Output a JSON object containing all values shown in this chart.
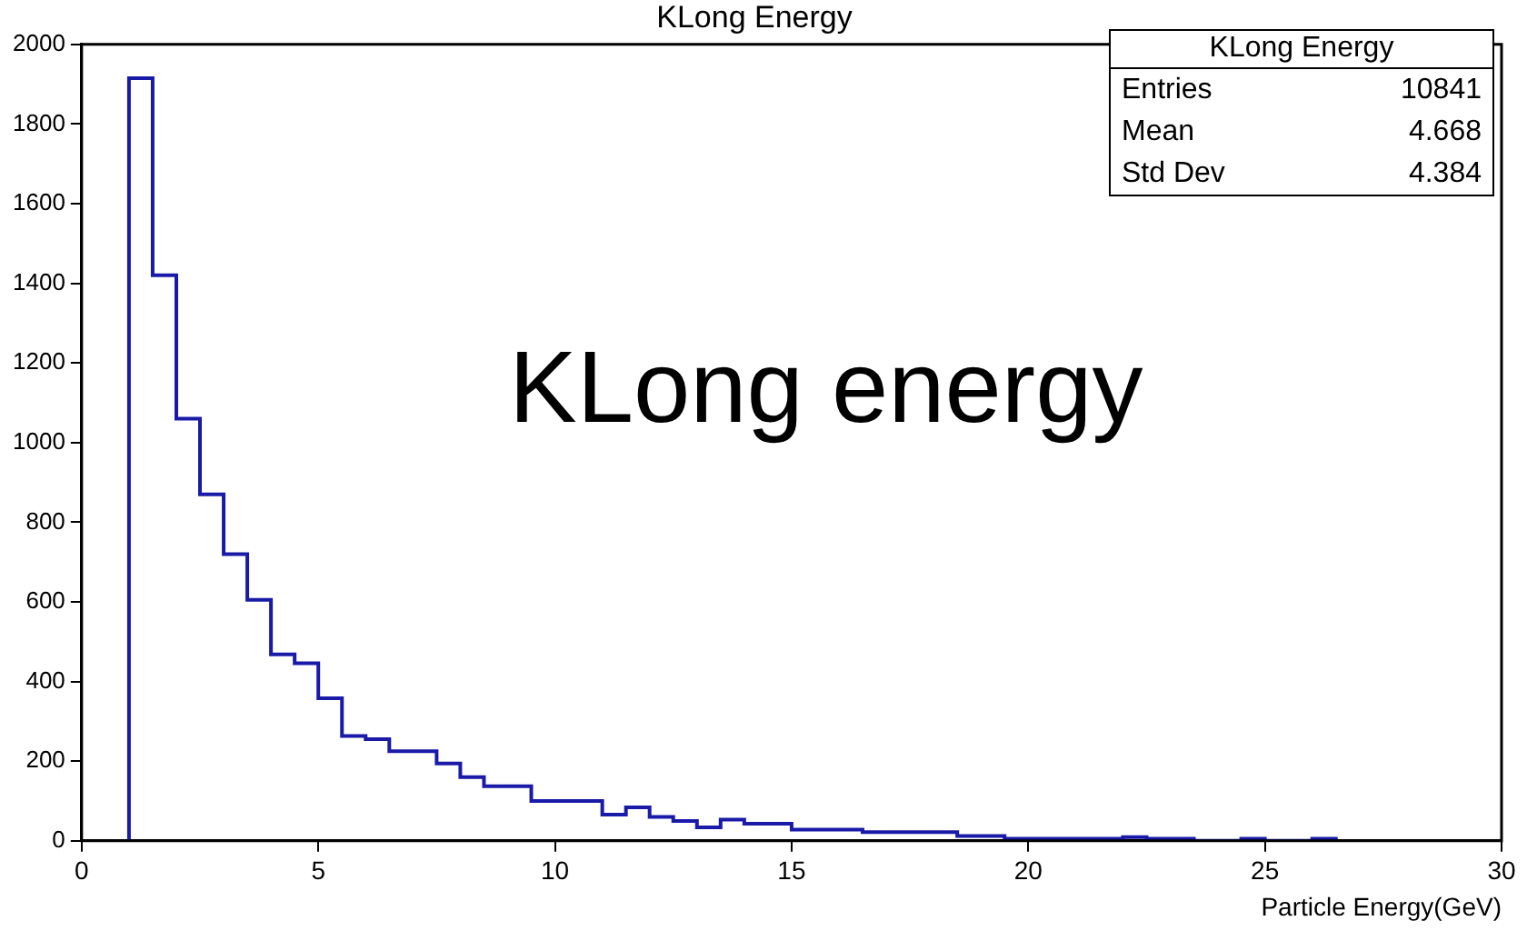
{
  "chart_data": {
    "type": "histogram",
    "title": "KLong Energy",
    "xlabel": "Particle Energy(GeV)",
    "bins": [
      1,
      1.5,
      2,
      2.5,
      3,
      3.5,
      4,
      4.5,
      5,
      5.5,
      6,
      6.5,
      7,
      7.5,
      8,
      8.5,
      9,
      9.5,
      10,
      10.5,
      11,
      11.5,
      12,
      12.5,
      13,
      13.5,
      14,
      14.5,
      15,
      15.5,
      16,
      16.5,
      17,
      17.5,
      18,
      18.5,
      19,
      19.5,
      20,
      20.5,
      21,
      21.5,
      22,
      22.5,
      23,
      23.5,
      24,
      24.5,
      25,
      25.5,
      26,
      26.5
    ],
    "values": [
      1915,
      1420,
      1060,
      870,
      720,
      605,
      468,
      446,
      358,
      263,
      255,
      225,
      225,
      194,
      160,
      137,
      137,
      100,
      100,
      100,
      66,
      84,
      60,
      50,
      34,
      53,
      43,
      43,
      28,
      28,
      28,
      22,
      22,
      22,
      22,
      12,
      12,
      5,
      5,
      5,
      5,
      5,
      9,
      5,
      5,
      0,
      0,
      5,
      0,
      0,
      5
    ],
    "color": "#1a1aa8",
    "xlim": [
      0,
      30
    ],
    "xticks": [
      0,
      5,
      10,
      15,
      20,
      25,
      30
    ],
    "ylim": [
      0,
      2000
    ],
    "yticks": [
      0,
      200,
      400,
      600,
      800,
      1000,
      1200,
      1400,
      1600,
      1800,
      2000
    ],
    "grid": false,
    "legend": false,
    "annotations": [
      "KLong Energy",
      "Entries",
      "10841",
      "Mean",
      "4.668",
      "Std Dev",
      "4.384",
      "KLong energy"
    ]
  }
}
